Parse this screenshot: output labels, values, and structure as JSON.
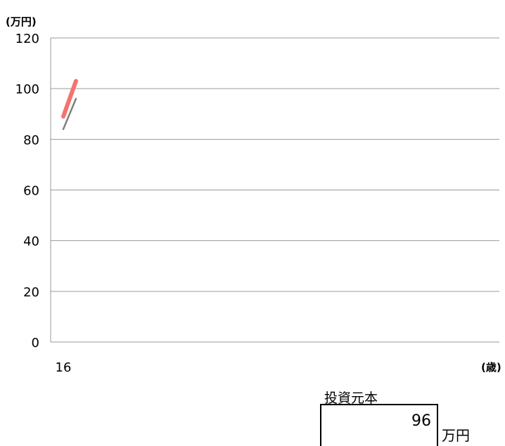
{
  "chart_data": {
    "type": "line",
    "y_unit": "(万円)",
    "x_unit": "(歳)",
    "x": [
      16,
      17
    ],
    "x_tick_labels": [
      "16"
    ],
    "ylim": [
      0,
      120
    ],
    "y_ticks": [
      0,
      20,
      40,
      60,
      80,
      100,
      120
    ],
    "grid": true,
    "series": [
      {
        "values": [
          89,
          103
        ],
        "color": "#f4736f"
      },
      {
        "values": [
          84,
          96
        ],
        "color": "#808080"
      }
    ]
  },
  "principal": {
    "label": "投資元本",
    "value": "96",
    "unit": "万円"
  }
}
